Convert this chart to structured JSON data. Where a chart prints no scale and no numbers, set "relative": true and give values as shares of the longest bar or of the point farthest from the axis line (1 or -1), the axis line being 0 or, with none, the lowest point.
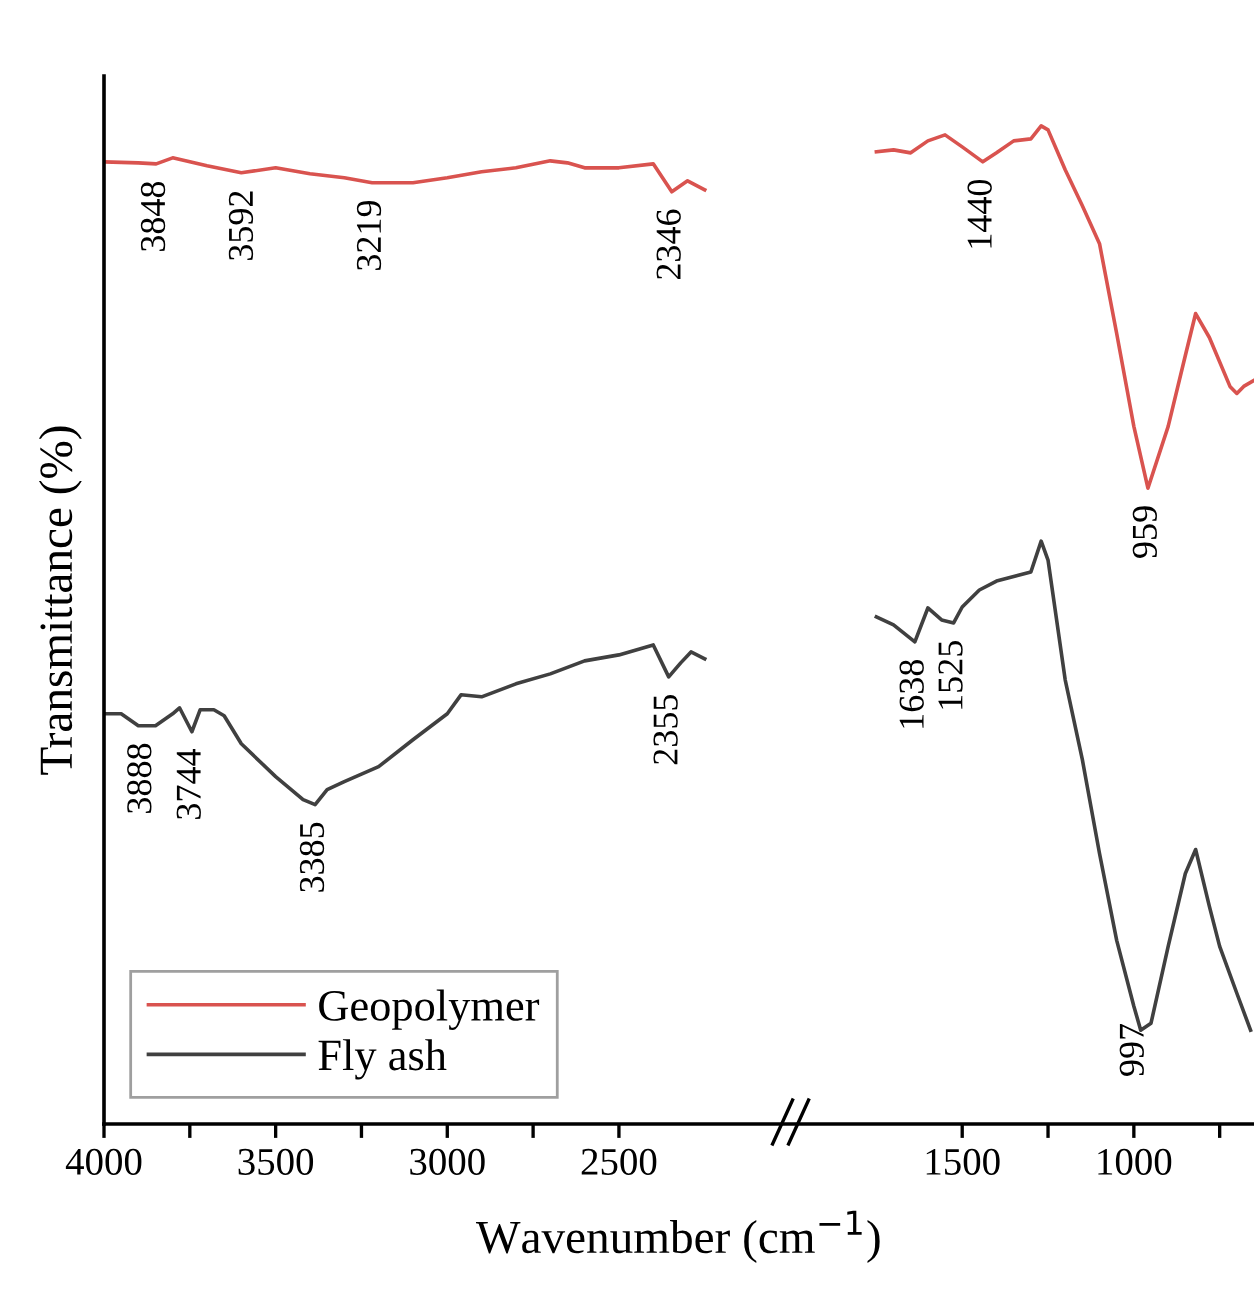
{
  "chart_data": {
    "type": "line",
    "relative": true,
    "xlabel": "Wavenumber (cm$^{−1}$)",
    "ylabel": "Transmittance (%)",
    "legend": "bottom left",
    "tick_labels": "x",
    "line_style": "solid",
    "xlim": [
      4000,
      650
    ],
    "xticks": [
      4000,
      {
        "value": 3750,
        "label": null
      },
      3500,
      {
        "value": 3250,
        "label": null
      },
      3000,
      {
        "value": 2750,
        "label": null
      },
      2500,
      1500,
      {
        "value": 1250,
        "label": null
      },
      1000,
      {
        "value": 750,
        "label": null
      }
    ],
    "series": [
      {
        "name": "Geopolymer",
        "color": "#d9534f",
        "x": [
          4000,
          3900,
          3848,
          3800,
          3700,
          3600,
          3500,
          3400,
          3300,
          3219,
          3100,
          3000,
          2900,
          2800,
          2700,
          2650,
          2600,
          2500,
          2400,
          2346,
          2300,
          2250,
          2000,
          1750,
          1700,
          1650,
          1600,
          1550,
          1500,
          1440,
          1400,
          1350,
          1300,
          1270,
          1250,
          1200,
          1150,
          1100,
          1050,
          1000,
          959,
          900,
          850,
          820,
          780,
          720,
          700,
          680,
          650
        ],
        "values": [
          0.964,
          0.963,
          0.962,
          0.968,
          0.96,
          0.953,
          0.958,
          0.952,
          0.948,
          0.943,
          0.943,
          0.948,
          0.954,
          0.958,
          0.965,
          0.963,
          0.958,
          0.958,
          0.962,
          0.934,
          0.945,
          0.936,
          null,
          0.974,
          0.976,
          0.973,
          0.985,
          0.991,
          0.979,
          0.964,
          0.973,
          0.985,
          0.987,
          1,
          0.996,
          0.956,
          0.92,
          0.882,
          0.792,
          0.699,
          0.637,
          0.699,
          0.77,
          0.812,
          0.788,
          0.739,
          0.732,
          0.739,
          0.745
        ]
      },
      {
        "name": "Fly ash",
        "color": "#404040",
        "x": [
          4000,
          3950,
          3900,
          3850,
          3800,
          3780,
          3744,
          3720,
          3680,
          3650,
          3600,
          3500,
          3420,
          3385,
          3350,
          3300,
          3200,
          3100,
          3000,
          2960,
          2900,
          2800,
          2700,
          2600,
          2500,
          2400,
          2355,
          2320,
          2290,
          2250,
          2000,
          1750,
          1700,
          1638,
          1600,
          1560,
          1525,
          1500,
          1450,
          1400,
          1300,
          1270,
          1250,
          1200,
          1150,
          1100,
          1050,
          1000,
          980,
          950,
          900,
          850,
          820,
          780,
          750,
          700,
          660
        ],
        "values": [
          0.411,
          0.411,
          0.399,
          0.399,
          0.411,
          0.417,
          0.393,
          0.415,
          0.415,
          0.409,
          0.381,
          0.348,
          0.325,
          0.32,
          0.335,
          0.343,
          0.358,
          0.385,
          0.411,
          0.43,
          0.428,
          0.441,
          0.451,
          0.464,
          0.47,
          0.48,
          0.448,
          0.462,
          0.473,
          0.466,
          null,
          0.508,
          0.5,
          0.483,
          0.517,
          0.505,
          0.502,
          0.518,
          0.535,
          0.544,
          0.553,
          0.584,
          0.565,
          0.445,
          0.365,
          0.271,
          0.184,
          0.118,
          0.094,
          0.101,
          0.178,
          0.251,
          0.275,
          0.218,
          0.178,
          0.131,
          0.094
        ]
      }
    ],
    "annotations": [
      {
        "text": "3848",
        "x": 3848,
        "y": 0.962
      },
      {
        "text": "3592",
        "x": 3592,
        "y": 0.953
      },
      {
        "text": "3219",
        "x": 3219,
        "y": 0.943
      },
      {
        "text": "2346",
        "x": 2346,
        "y": 0.934
      },
      {
        "text": "1440",
        "x": 1440,
        "y": 0.964
      },
      {
        "text": "959",
        "x": 959,
        "y": 0.637
      },
      {
        "text": "3888",
        "x": 3888,
        "y": 0.399
      },
      {
        "text": "3744",
        "x": 3744,
        "y": 0.393
      },
      {
        "text": "3385",
        "x": 3385,
        "y": 0.32
      },
      {
        "text": "2355",
        "x": 2355,
        "y": 0.448
      },
      {
        "text": "1638",
        "x": 1638,
        "y": 0.483
      },
      {
        "text": "1525",
        "x": 1525,
        "y": 0.502
      },
      {
        "text": "997",
        "x": 997,
        "y": 0.118
      }
    ]
  }
}
